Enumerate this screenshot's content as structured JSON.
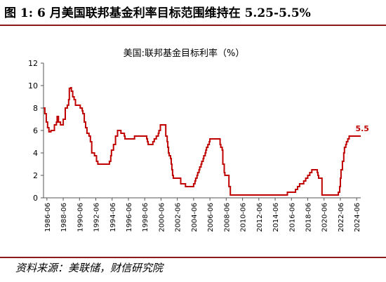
{
  "figure": {
    "title": "图 1: 6 月美国联邦基金利率目标范围维持在 5.25-5.5%",
    "source": "资料来源：美联储，财信研究院"
  },
  "chart_data": {
    "type": "line",
    "title": "美国:联邦基金目标利率（%）",
    "xlabel": "",
    "ylabel": "",
    "ylim": [
      0,
      12
    ],
    "yticks": [
      "0",
      "2",
      "4",
      "6",
      "8",
      "10",
      "12"
    ],
    "xlim": [
      "1986-01",
      "2024-12"
    ],
    "xticks": [
      "1986-06",
      "1988-06",
      "1990-06",
      "1992-06",
      "1994-06",
      "1996-06",
      "1998-06",
      "2000-06",
      "2002-06",
      "2004-06",
      "2006-06",
      "2008-06",
      "2010-06",
      "2012-06",
      "2014-06",
      "2016-06",
      "2018-06",
      "2020-06",
      "2022-06",
      "2024-06"
    ],
    "grid": false,
    "line_color": "#c00000",
    "annotation": {
      "x": "2024-06",
      "y": 5.5,
      "text": "5.5"
    },
    "series": [
      {
        "x": [
          "1986-01",
          "1986-03",
          "1986-05",
          "1986-07",
          "1986-09",
          "1986-12",
          "1987-03",
          "1987-05",
          "1987-08",
          "1987-09",
          "1987-11",
          "1988-02",
          "1988-06",
          "1988-09",
          "1988-12",
          "1989-02",
          "1989-03",
          "1989-05",
          "1989-06",
          "1989-08",
          "1989-10",
          "1989-12",
          "1990-03",
          "1990-07",
          "1990-10",
          "1990-11",
          "1991-01",
          "1991-03",
          "1991-05",
          "1991-08",
          "1991-10",
          "1991-12",
          "1992-04",
          "1992-07",
          "1992-09",
          "1994-02",
          "1994-04",
          "1994-05",
          "1994-08",
          "1994-11",
          "1995-02",
          "1995-07",
          "1995-12",
          "1996-01",
          "1997-03",
          "1998-09",
          "1998-10",
          "1998-11",
          "1999-06",
          "1999-08",
          "1999-11",
          "2000-02",
          "2000-03",
          "2000-05",
          "2001-01",
          "2001-02",
          "2001-03",
          "2001-04",
          "2001-05",
          "2001-06",
          "2001-08",
          "2001-09",
          "2001-10",
          "2001-11",
          "2001-12",
          "2002-11",
          "2003-06",
          "2004-06",
          "2004-08",
          "2004-09",
          "2004-11",
          "2004-12",
          "2005-02",
          "2005-03",
          "2005-05",
          "2005-06",
          "2005-08",
          "2005-09",
          "2005-11",
          "2005-12",
          "2006-01",
          "2006-03",
          "2006-05",
          "2006-06",
          "2007-09",
          "2007-10",
          "2007-12",
          "2008-01",
          "2008-03",
          "2008-04",
          "2008-10",
          "2008-12",
          "2015-12",
          "2016-12",
          "2017-03",
          "2017-06",
          "2017-12",
          "2018-03",
          "2018-06",
          "2018-09",
          "2018-12",
          "2019-08",
          "2019-09",
          "2019-10",
          "2020-03",
          "2022-03",
          "2022-05",
          "2022-06",
          "2022-07",
          "2022-09",
          "2022-11",
          "2022-12",
          "2023-02",
          "2023-03",
          "2023-05",
          "2023-07",
          "2024-12"
        ],
        "values": [
          8.0,
          7.5,
          6.75,
          6.25,
          5.88,
          6.0,
          6.0,
          6.5,
          6.75,
          7.25,
          6.75,
          6.5,
          7.0,
          8.0,
          8.25,
          8.75,
          9.75,
          9.81,
          9.5,
          9.0,
          8.75,
          8.25,
          8.25,
          8.0,
          7.75,
          7.5,
          6.75,
          6.25,
          5.75,
          5.5,
          5.0,
          4.0,
          3.75,
          3.25,
          3.0,
          3.25,
          3.75,
          4.25,
          4.75,
          5.5,
          6.0,
          5.75,
          5.5,
          5.25,
          5.5,
          5.25,
          5.0,
          4.75,
          5.0,
          5.25,
          5.5,
          5.75,
          6.0,
          6.5,
          5.5,
          5.5,
          5.0,
          4.5,
          4.0,
          3.75,
          3.5,
          3.0,
          2.5,
          2.0,
          1.75,
          1.25,
          1.0,
          1.25,
          1.5,
          1.75,
          2.0,
          2.25,
          2.5,
          2.75,
          3.0,
          3.25,
          3.5,
          3.75,
          4.0,
          4.25,
          4.5,
          4.75,
          5.0,
          5.25,
          4.75,
          4.5,
          4.25,
          3.0,
          2.25,
          2.0,
          1.0,
          0.25,
          0.5,
          0.75,
          1.0,
          1.25,
          1.5,
          1.75,
          2.0,
          2.25,
          2.5,
          2.25,
          2.0,
          1.75,
          0.25,
          0.5,
          1.0,
          1.75,
          2.5,
          3.25,
          4.0,
          4.5,
          4.75,
          5.0,
          5.25,
          5.5,
          5.5
        ]
      }
    ]
  }
}
